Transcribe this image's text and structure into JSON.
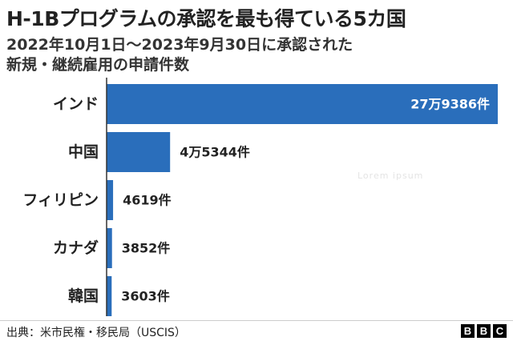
{
  "title": "H-1Bプログラムの承認を最も得ている5カ国",
  "subtitle_line1": "2022年10月1日～2023年9月30日に承認された",
  "subtitle_line2": "新規・継続雇用の申請件数",
  "source": "出典：米市民権・移民局（USCIS）",
  "watermark": "Lorem ipsum",
  "logo": [
    "B",
    "B",
    "C"
  ],
  "colors": {
    "bar": "#2a6ebb",
    "text": "#222222",
    "bar_label_inside": "#ffffff"
  },
  "chart_data": {
    "type": "bar",
    "orientation": "horizontal",
    "categories": [
      "インド",
      "中国",
      "フィリピン",
      "カナダ",
      "韓国"
    ],
    "values": [
      279386,
      45344,
      4619,
      3852,
      3603
    ],
    "value_labels": [
      "27万9386件",
      "4万5344件",
      "4619件",
      "3852件",
      "3603件"
    ],
    "title": "H-1Bプログラムの承認を最も得ている5カ国",
    "xlabel": "",
    "ylabel": "",
    "grid": false,
    "legend": "none"
  }
}
